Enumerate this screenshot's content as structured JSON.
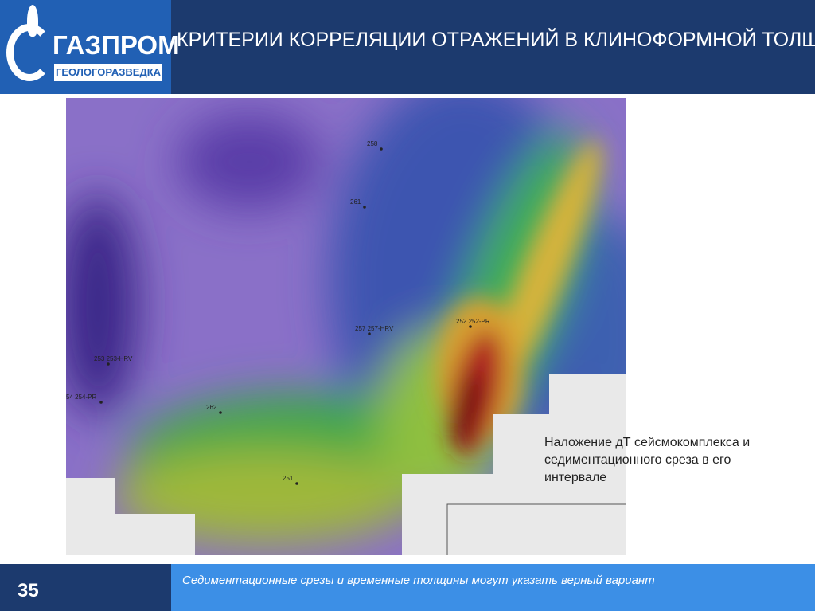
{
  "header": {
    "logo_name": "ГАЗПРОМ",
    "logo_subtitle": "ГЕОЛОГОРАЗВЕДКА",
    "title": "КРИТЕРИИ КОРРЕЛЯЦИИ ОТРАЖЕНИЙ В КЛИНОФОРМНОЙ ТОЛЩЕ"
  },
  "map": {
    "wells": [
      "258",
      "261",
      "257 257-HRV",
      "252 252-PR",
      "253 253-HRV",
      "54 254-PR",
      "262",
      "251"
    ]
  },
  "caption": "Наложение дТ сейсмокомплекса и седиментационного среза в его интервале",
  "footer": {
    "page": "35",
    "text": "Седиментационные срезы и временные толщины могут указать верный вариант"
  }
}
